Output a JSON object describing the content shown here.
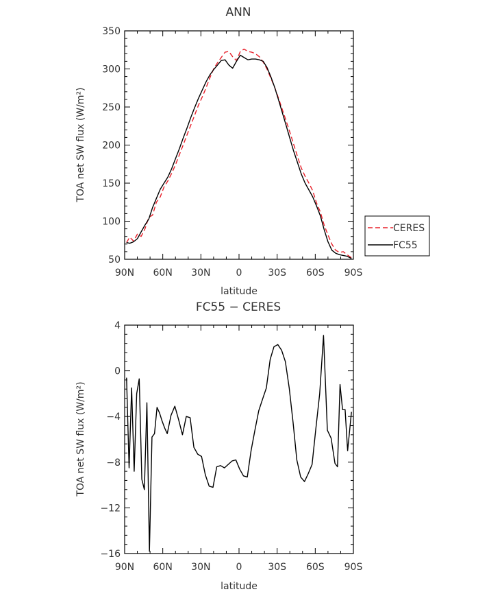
{
  "chart_data": [
    {
      "type": "line",
      "title": "ANN",
      "xlabel": "latitude",
      "ylabel": "TOA net SW flux (W/m²)",
      "xlim": [
        90,
        -90
      ],
      "ylim": [
        50,
        350
      ],
      "x_ticks": [
        90,
        60,
        30,
        0,
        -30,
        -60,
        -90
      ],
      "x_tick_labels": [
        "90N",
        "60N",
        "30N",
        "0",
        "30S",
        "60S",
        "90S"
      ],
      "y_ticks": [
        50,
        100,
        150,
        200,
        250,
        300,
        350
      ],
      "y_tick_labels": [
        "50",
        "100",
        "150",
        "200",
        "250",
        "300",
        "350"
      ],
      "legend_position": "outside-right",
      "series": [
        {
          "name": "CERES",
          "color": "#e8202a",
          "dash": "dashed",
          "x": [
            88.5,
            86,
            83,
            80,
            77,
            74,
            71,
            68,
            65,
            62,
            59,
            56,
            53,
            50,
            47,
            44,
            41,
            38,
            35,
            32,
            29,
            26,
            23,
            20,
            17,
            14,
            11,
            8,
            5,
            2,
            -1,
            -4,
            -7,
            -10,
            -13,
            -16,
            -19,
            -22,
            -25,
            -28,
            -31,
            -34,
            -37,
            -40,
            -43,
            -46,
            -49,
            -52,
            -55,
            -58,
            -61,
            -64,
            -67,
            -70,
            -73,
            -76,
            -79,
            -82,
            -85,
            -88.5
          ],
          "y": [
            72,
            79,
            74,
            83,
            80,
            90,
            105,
            108,
            125,
            132,
            145,
            153,
            163,
            174,
            187,
            200,
            213,
            226,
            239,
            252,
            263,
            275,
            288,
            300,
            308,
            315,
            322,
            323,
            316,
            311,
            323,
            326,
            323,
            322,
            320,
            316,
            309,
            300,
            288,
            276,
            262,
            247,
            232,
            217,
            201,
            185,
            170,
            159,
            150,
            140,
            124,
            112,
            95,
            82,
            70,
            62,
            59,
            60,
            56,
            52
          ]
        },
        {
          "name": "FC55",
          "color": "#000000",
          "dash": "solid",
          "x": [
            88.5,
            86,
            83,
            80,
            77,
            74,
            71,
            68,
            65,
            62,
            59,
            56,
            53,
            50,
            47,
            44,
            41,
            38,
            35,
            32,
            29,
            26,
            23,
            20,
            17,
            14,
            11,
            8,
            5,
            2,
            -1,
            -4,
            -7,
            -10,
            -13,
            -16,
            -19,
            -22,
            -25,
            -28,
            -31,
            -34,
            -37,
            -40,
            -43,
            -46,
            -49,
            -52,
            -55,
            -58,
            -61,
            -64,
            -67,
            -70,
            -73,
            -76,
            -79,
            -82,
            -85,
            -88.5
          ],
          "y": [
            72,
            71,
            73,
            77,
            86,
            95,
            103,
            118,
            130,
            142,
            150,
            158,
            169,
            182,
            195,
            209,
            222,
            236,
            249,
            261,
            272,
            283,
            292,
            299,
            305,
            311,
            312,
            305,
            301,
            310,
            318,
            315,
            312,
            313,
            313,
            312,
            310,
            302,
            290,
            276,
            260,
            243,
            226,
            209,
            192,
            177,
            162,
            150,
            141,
            132,
            120,
            107,
            89,
            73,
            62,
            58,
            56,
            55,
            54,
            51
          ]
        }
      ]
    },
    {
      "type": "line",
      "title": "FC55 − CERES",
      "xlabel": "latitude",
      "ylabel": "TOA net SW flux (W/m²)",
      "xlim": [
        90,
        -90
      ],
      "ylim": [
        -16,
        4
      ],
      "x_ticks": [
        90,
        60,
        30,
        0,
        -30,
        -60,
        -90
      ],
      "x_tick_labels": [
        "90N",
        "60N",
        "30N",
        "0",
        "30S",
        "60S",
        "90S"
      ],
      "y_ticks": [
        -16,
        -12,
        -8,
        -4,
        0,
        4
      ],
      "y_tick_labels": [
        "−16",
        "−12",
        "−8",
        "−4",
        "0",
        "4"
      ],
      "series": [
        {
          "color": "#000000",
          "dash": "solid",
          "x": [
            88.5,
            86.5,
            84.5,
            82.5,
            80.5,
            78.5,
            76.5,
            74.5,
            72.5,
            70.5,
            68.5,
            66.5,
            64.5,
            62.5,
            60.5,
            58.5,
            56.5,
            53.5,
            50.5,
            47.5,
            44.5,
            41.5,
            38.5,
            35.5,
            32.5,
            29.5,
            26.5,
            23.5,
            20.5,
            17.5,
            14.5,
            11.5,
            8.5,
            5.5,
            2.5,
            -0.5,
            -3.5,
            -6.5,
            -9.5,
            -12.5,
            -15.5,
            -18.5,
            -21.5,
            -24.5,
            -27.5,
            -30.5,
            -33.5,
            -36.5,
            -39.5,
            -42.5,
            -45.5,
            -48.5,
            -51.5,
            -54.5,
            -57.5,
            -60.5,
            -63.5,
            -66.5,
            -69.5,
            -72.5,
            -75.5,
            -77.5,
            -79.5,
            -81.5,
            -83.5,
            -85.5,
            -88.5
          ],
          "y": [
            -0.6,
            -8.5,
            -1.5,
            -8.8,
            -2,
            -0.7,
            -9.5,
            -10.4,
            -2.8,
            -15.8,
            -5.8,
            -5.5,
            -3.2,
            -3.7,
            -4.4,
            -5,
            -5.5,
            -3.9,
            -3.1,
            -4.3,
            -5.6,
            -4,
            -4.1,
            -6.7,
            -7.3,
            -7.5,
            -9.1,
            -10.1,
            -10.2,
            -8.4,
            -8.3,
            -8.5,
            -8.2,
            -7.9,
            -7.8,
            -8.6,
            -9.2,
            -9.3,
            -7,
            -5.2,
            -3.5,
            -2.5,
            -1.5,
            1,
            2.1,
            2.3,
            1.8,
            0.8,
            -1.5,
            -4.5,
            -7.8,
            -9.3,
            -9.7,
            -9,
            -8.2,
            -5,
            -2,
            3.1,
            -5.2,
            -5.9,
            -8.1,
            -8.4,
            -1.2,
            -3.4,
            -3.4,
            -7,
            -3.6
          ]
        }
      ]
    }
  ],
  "legend": {
    "items": [
      {
        "label": "CERES",
        "color": "#e8202a",
        "dash": "dashed"
      },
      {
        "label": "FC55",
        "color": "#000000",
        "dash": "solid"
      }
    ]
  }
}
